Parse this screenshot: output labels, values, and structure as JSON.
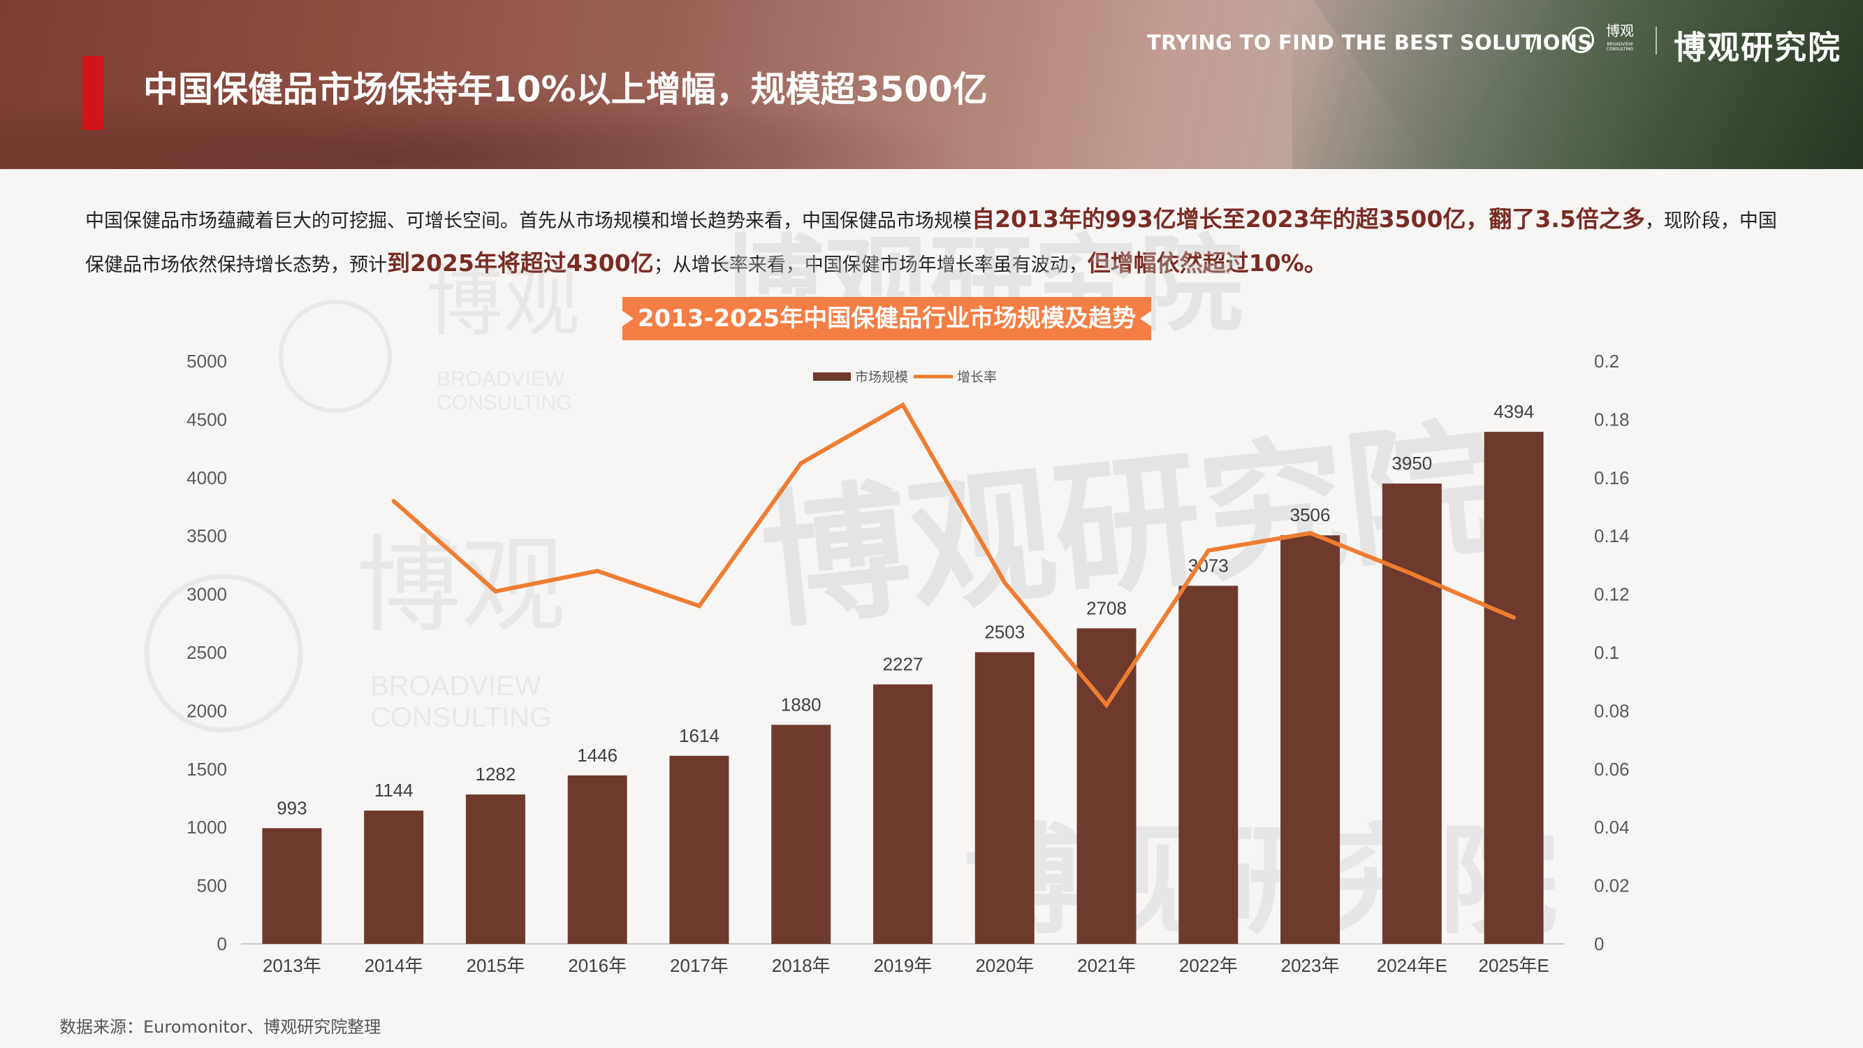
{
  "header": {
    "title": "中国保健品市场保持年10%以上增幅，规模超3500亿",
    "slogan": "TRYING TO FIND THE BEST SOLUTIONS",
    "slash": "/",
    "logo_small": "博观",
    "logo_small_sub": "BROADVIEW CONSULTING",
    "brand": "博观研究院"
  },
  "intro": {
    "p1": "中国保健品市场蕴藏着巨大的可挖掘、可增长空间。首先从市场规模和增长趋势来看，中国保健品市场规模",
    "h1": "自2013年的993亿增长至2023年的超3500亿，翻了3.5倍之多",
    "p2": "，现阶段，中国保健品市场依然保持增长态势，预计",
    "h2": "到2025年将超过4300亿",
    "p3": "；从增长率来看，中国保健市场年增长率虽有波动，",
    "h3": "但增幅依然超过10%。"
  },
  "watermark": {
    "cn": "博观研究院",
    "cn_short": "博观",
    "en1": "BROADVIEW",
    "en2": "CONSULTING"
  },
  "colors": {
    "bar": "#6e3a2e",
    "line": "#ee7d32",
    "title_bg": "#f47e43",
    "accent_red": "#d2151b",
    "highlight": "#7a2b23"
  },
  "chart_data": {
    "type": "bar",
    "title": "2013-2025年中国保健品行业市场规模及趋势",
    "categories": [
      "2013年",
      "2014年",
      "2015年",
      "2016年",
      "2017年",
      "2018年",
      "2019年",
      "2020年",
      "2021年",
      "2022年",
      "2023年",
      "2024年E",
      "2025年E"
    ],
    "series": [
      {
        "name": "市场规模",
        "type": "bar",
        "axis": "left",
        "values": [
          993,
          1144,
          1282,
          1446,
          1614,
          1880,
          2227,
          2503,
          2708,
          3073,
          3506,
          3950,
          4394
        ]
      },
      {
        "name": "增长率",
        "type": "line",
        "axis": "right",
        "values": [
          null,
          0.152,
          0.121,
          0.128,
          0.116,
          0.165,
          0.185,
          0.124,
          0.082,
          0.135,
          0.141,
          0.127,
          0.112
        ]
      }
    ],
    "y_left": {
      "min": 0,
      "max": 5000,
      "ticks": [
        "0",
        "500",
        "1000",
        "1500",
        "2000",
        "2500",
        "3000",
        "3500",
        "4000",
        "4500",
        "5000"
      ]
    },
    "y_right": {
      "min": 0,
      "max": 0.2,
      "ticks": [
        "0",
        "0.02",
        "0.04",
        "0.06",
        "0.08",
        "0.1",
        "0.12",
        "0.14",
        "0.16",
        "0.18",
        "0.2"
      ]
    },
    "legend_position": "top-center",
    "grid": false
  },
  "source": "数据来源：Euromonitor、博观研究院整理"
}
